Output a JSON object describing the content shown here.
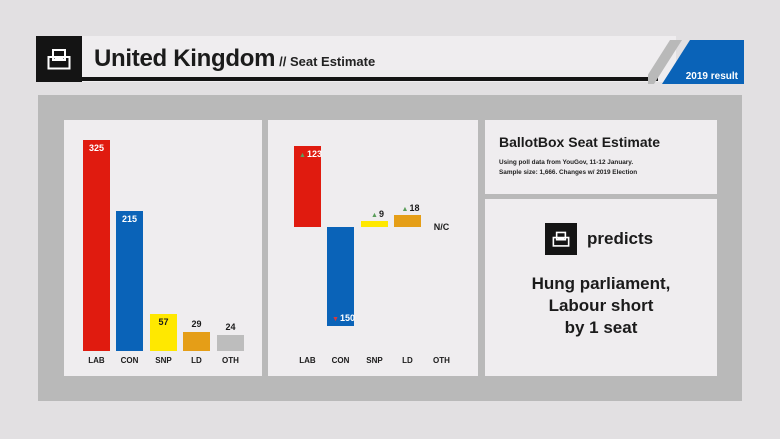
{
  "header": {
    "country": "United Kingdom",
    "subtitle": "// Seat Estimate",
    "badge": "2019 result",
    "logo_icon": "ballot-box-icon"
  },
  "colors": {
    "LAB": "#e01b0f",
    "CON": "#0a63b8",
    "SNP": "#ffe800",
    "LD": "#e59e17",
    "OTH": "#bdbdbd",
    "up_arrow": "#5a9e5a",
    "down_arrow": "#d83a3a",
    "badge_blue": "#0a63b8"
  },
  "chart_data": [
    {
      "type": "bar",
      "categories": [
        "LAB",
        "CON",
        "SNP",
        "LD",
        "OTH"
      ],
      "values": [
        325,
        215,
        57,
        29,
        24
      ],
      "labels": [
        "325",
        "215",
        "57",
        "29",
        "24"
      ],
      "ylim": [
        0,
        325
      ]
    },
    {
      "type": "bar",
      "categories": [
        "LAB",
        "CON",
        "SNP",
        "LD",
        "OTH"
      ],
      "values": [
        123,
        -150,
        9,
        18,
        0
      ],
      "labels": [
        "123",
        "150",
        "9",
        "18",
        "N/C"
      ],
      "ylim": [
        -150,
        123
      ]
    }
  ],
  "estimate": {
    "title": "BallotBox Seat Estimate",
    "line1": "Using poll data from YouGov, 11-12 January.",
    "line2": "Sample size: 1,666. Changes w/ 2019 Election"
  },
  "prediction": {
    "label": "predicts",
    "line1": "Hung parliament,",
    "line2": "Labour short",
    "line3": "by 1 seat"
  }
}
